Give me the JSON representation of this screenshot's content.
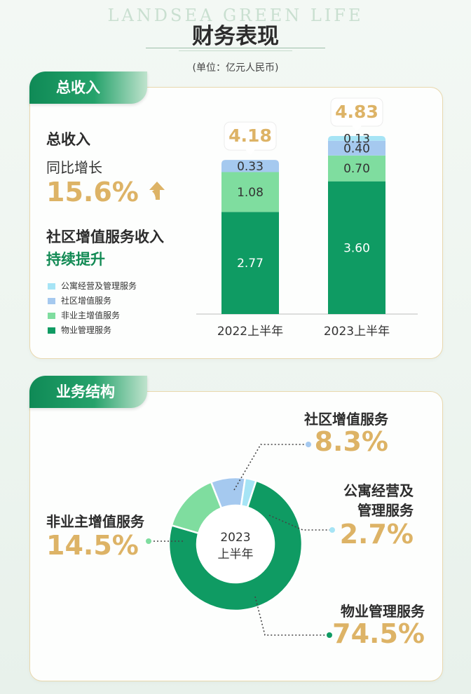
{
  "header": {
    "brand": "LANDSEA GREEN LIFE",
    "title": "财务表现",
    "unit": "(单位：亿元人民币)"
  },
  "revenue": {
    "tab": "总收入",
    "heading": "总收入",
    "yoy_label": "同比增长",
    "yoy_value": "15.6%",
    "community_heading": "社区增值服务收入",
    "community_note": "持续提升"
  },
  "structure": {
    "tab": "业务结构"
  },
  "colors": {
    "property_mgmt": "#0f9b63",
    "non_owner": "#7fdd9f",
    "community": "#a5c9ef",
    "apartment": "#a6e4f5",
    "accent_gold": "#ddb366",
    "brand_green": "#128a54"
  },
  "chart_data": [
    {
      "type": "bar",
      "stacked": true,
      "categories": [
        "2022上半年",
        "2023上半年"
      ],
      "totals": [
        "4.18",
        "4.83"
      ],
      "series": [
        {
          "name": "物业管理服务",
          "values": [
            2.77,
            3.6
          ],
          "labels": [
            "2.77",
            "3.60"
          ],
          "color": "#0f9b63"
        },
        {
          "name": "非业主增值服务",
          "values": [
            1.08,
            0.7
          ],
          "labels": [
            "1.08",
            "0.70"
          ],
          "color": "#7fdd9f"
        },
        {
          "name": "社区增值服务",
          "values": [
            0.33,
            0.4
          ],
          "labels": [
            "0.33",
            "0.40"
          ],
          "color": "#a5c9ef"
        },
        {
          "name": "公寓经营及管理服务",
          "values": [
            0,
            0.13
          ],
          "labels": [
            "",
            "0.13"
          ],
          "color": "#a6e4f5"
        }
      ],
      "legend": [
        {
          "name": "公寓经营及管理服务",
          "color": "#a6e4f5"
        },
        {
          "name": "社区增值服务",
          "color": "#a5c9ef"
        },
        {
          "name": "非业主增值服务",
          "color": "#7fdd9f"
        },
        {
          "name": "物业管理服务",
          "color": "#0f9b63"
        }
      ],
      "legend_position": "left"
    },
    {
      "type": "pie",
      "donut": true,
      "center_label": [
        "2023",
        "上半年"
      ],
      "slices": [
        {
          "name": "物业管理服务",
          "value": 74.5,
          "label": "74.5%",
          "color": "#0f9b63"
        },
        {
          "name": "非业主增值服务",
          "value": 14.5,
          "label": "14.5%",
          "color": "#7fdd9f"
        },
        {
          "name": "社区增值服务",
          "value": 8.3,
          "label": "8.3%",
          "color": "#a5c9ef"
        },
        {
          "name": "公寓经营及管理服务",
          "value": 2.7,
          "label": "2.7%",
          "label_lines": [
            "公寓经营及",
            "管理服务"
          ],
          "color": "#a6e4f5"
        }
      ]
    }
  ]
}
